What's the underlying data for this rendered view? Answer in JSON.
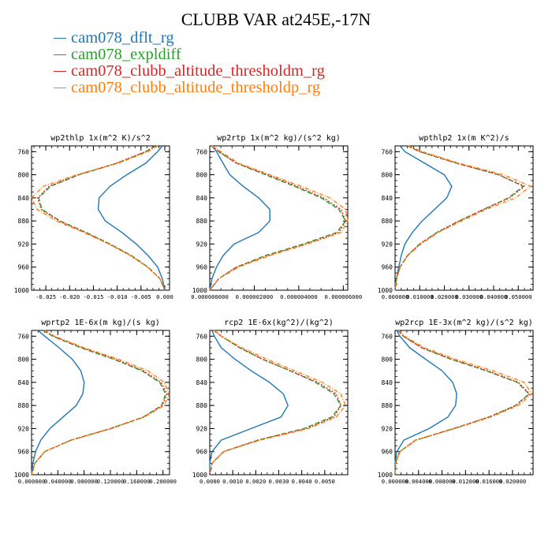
{
  "title": "CLUBB VAR at245E,-17N",
  "legend": [
    {
      "label": "cam078_dflt_rg",
      "color": "#1f77b4"
    },
    {
      "label": "cam078_expldiff",
      "color": "#2ca02c"
    },
    {
      "label": "cam078_clubb_altitude_thresholdm_rg",
      "color": "#d62728"
    },
    {
      "label": "cam078_clubb_altitude_thresholdp_rg",
      "color": "#ff7f0e"
    }
  ],
  "chart_data": [
    {
      "type": "line",
      "title": "wp2thlp  1x(m^2 K)/s^2",
      "xlim": [
        -0.028,
        0.001
      ],
      "ylim": [
        1000,
        750
      ],
      "y_reversed": true,
      "xtick_labels": [
        "-0.025",
        "-0.020",
        "-0.015",
        "-0.010",
        "-0.005",
        "0.000"
      ],
      "xtick_values": [
        -0.025,
        -0.02,
        -0.015,
        -0.01,
        -0.005,
        0.0
      ],
      "ytick_labels": [
        "760",
        "800",
        "840",
        "880",
        "920",
        "960",
        "1000"
      ],
      "ytick_values": [
        760,
        800,
        840,
        880,
        920,
        960,
        1000
      ],
      "y": [
        750,
        760,
        780,
        800,
        820,
        840,
        860,
        880,
        900,
        920,
        940,
        960,
        980,
        1000
      ],
      "series": [
        {
          "name": "cam078_dflt_rg",
          "x": [
            -0.0005,
            -0.0015,
            -0.004,
            -0.008,
            -0.0115,
            -0.0138,
            -0.014,
            -0.0125,
            -0.009,
            -0.006,
            -0.0035,
            -0.0015,
            -0.0005,
            0.0
          ]
        },
        {
          "name": "cam078_expldiff",
          "x": [
            -0.002,
            -0.004,
            -0.01,
            -0.018,
            -0.024,
            -0.0265,
            -0.0258,
            -0.022,
            -0.0165,
            -0.0115,
            -0.007,
            -0.0035,
            -0.001,
            0.0
          ]
        },
        {
          "name": "cam078_clubb_altitude_thresholdm_rg",
          "x": [
            -0.002,
            -0.004,
            -0.0102,
            -0.0182,
            -0.0243,
            -0.0267,
            -0.026,
            -0.0222,
            -0.0167,
            -0.0117,
            -0.0072,
            -0.0036,
            -0.001,
            0.0
          ]
        },
        {
          "name": "cam078_clubb_altitude_thresholdp_rg",
          "x": [
            -0.0015,
            -0.0035,
            -0.0098,
            -0.0185,
            -0.0255,
            -0.028,
            -0.0268,
            -0.0228,
            -0.017,
            -0.0118,
            -0.0072,
            -0.0036,
            -0.001,
            0.0
          ]
        }
      ]
    },
    {
      "type": "line",
      "title": "wp2rtp  1x(m^2 kg)/(s^2 kg)",
      "xlim": [
        0.0,
        6.2e-06
      ],
      "ylim": [
        1000,
        750
      ],
      "y_reversed": true,
      "xtick_labels": [
        "0.000000000",
        "0.000002000",
        "0.000004000",
        "0.000006000"
      ],
      "xtick_values": [
        0.0,
        2e-06,
        4e-06,
        6e-06
      ],
      "ytick_labels": [
        "760",
        "800",
        "840",
        "880",
        "920",
        "960",
        "1000"
      ],
      "ytick_values": [
        760,
        800,
        840,
        880,
        920,
        960,
        1000
      ],
      "y": [
        750,
        760,
        780,
        800,
        820,
        840,
        860,
        880,
        900,
        920,
        940,
        960,
        980,
        1000
      ],
      "series": [
        {
          "name": "cam078_dflt_rg",
          "x": [
            1e-07,
            3e-07,
            6e-07,
            9e-07,
            1.5e-06,
            2.2e-06,
            2.7e-06,
            2.7e-06,
            2.2e-06,
            1.1e-06,
            6e-07,
            3e-07,
            1e-07,
            0.0
          ]
        },
        {
          "name": "cam078_expldiff",
          "x": [
            1e-07,
            4e-07,
            1.2e-06,
            2.5e-06,
            3.8e-06,
            5e-06,
            5.8e-06,
            6.1e-06,
            5.7e-06,
            4.2e-06,
            2.5e-06,
            1.2e-06,
            4e-07,
            0.0
          ]
        },
        {
          "name": "cam078_clubb_altitude_thresholdm_rg",
          "x": [
            1e-07,
            4e-07,
            1.2e-06,
            2.6e-06,
            3.9e-06,
            5.1e-06,
            5.9e-06,
            6.1e-06,
            5.8e-06,
            4.3e-06,
            2.6e-06,
            1.2e-06,
            4e-07,
            0.0
          ]
        },
        {
          "name": "cam078_clubb_altitude_thresholdp_rg",
          "x": [
            1e-07,
            5e-07,
            1.3e-06,
            2.7e-06,
            4.1e-06,
            5.4e-06,
            6.1e-06,
            6.2e-06,
            5.9e-06,
            4.4e-06,
            2.7e-06,
            1.3e-06,
            4e-07,
            0.0
          ]
        }
      ]
    },
    {
      "type": "line",
      "title": "wpthlp2  1x(m K^2)/s",
      "xlim": [
        0.0,
        0.056
      ],
      "ylim": [
        1000,
        750
      ],
      "y_reversed": true,
      "xtick_labels": [
        "0.000000",
        "0.010000",
        "0.020000",
        "0.030000",
        "0.040000",
        "0.050000"
      ],
      "xtick_values": [
        0.0,
        0.01,
        0.02,
        0.03,
        0.04,
        0.05
      ],
      "ytick_labels": [
        "760",
        "800",
        "840",
        "880",
        "920",
        "960",
        "1000"
      ],
      "ytick_values": [
        760,
        800,
        840,
        880,
        920,
        960,
        1000
      ],
      "y": [
        750,
        760,
        780,
        800,
        820,
        840,
        860,
        880,
        900,
        920,
        940,
        960,
        980,
        1000
      ],
      "series": [
        {
          "name": "cam078_dflt_rg",
          "x": [
            0.002,
            0.004,
            0.012,
            0.02,
            0.023,
            0.021,
            0.016,
            0.011,
            0.007,
            0.004,
            0.0025,
            0.0015,
            0.0005,
            0.0
          ]
        },
        {
          "name": "cam078_expldiff",
          "x": [
            0.005,
            0.01,
            0.025,
            0.042,
            0.052,
            0.046,
            0.036,
            0.026,
            0.017,
            0.01,
            0.005,
            0.002,
            0.0005,
            0.0
          ]
        },
        {
          "name": "cam078_clubb_altitude_thresholdm_rg",
          "x": [
            0.005,
            0.01,
            0.025,
            0.042,
            0.0525,
            0.0465,
            0.036,
            0.026,
            0.017,
            0.01,
            0.005,
            0.002,
            0.0005,
            0.0
          ]
        },
        {
          "name": "cam078_clubb_altitude_thresholdp_rg",
          "x": [
            0.0055,
            0.011,
            0.026,
            0.044,
            0.055,
            0.049,
            0.037,
            0.027,
            0.0175,
            0.0105,
            0.0052,
            0.0021,
            0.0005,
            0.0
          ]
        }
      ]
    },
    {
      "type": "line",
      "title": "wprtp2  1E-6x(m kg)/(s kg)",
      "xlim": [
        0.0,
        0.21
      ],
      "ylim": [
        1000,
        750
      ],
      "y_reversed": true,
      "xtick_labels": [
        "0.000000",
        "0.040000",
        "0.080000",
        "0.120000",
        "0.160000",
        "0.200000"
      ],
      "xtick_values": [
        0.0,
        0.04,
        0.08,
        0.12,
        0.16,
        0.2
      ],
      "ytick_labels": [
        "760",
        "800",
        "840",
        "880",
        "920",
        "960",
        "1000"
      ],
      "ytick_values": [
        760,
        800,
        840,
        880,
        920,
        960,
        1000
      ],
      "y": [
        750,
        760,
        780,
        800,
        820,
        840,
        860,
        880,
        900,
        920,
        940,
        960,
        980,
        1000
      ],
      "series": [
        {
          "name": "cam078_dflt_rg",
          "x": [
            0.01,
            0.02,
            0.042,
            0.062,
            0.075,
            0.08,
            0.078,
            0.068,
            0.048,
            0.028,
            0.014,
            0.006,
            0.002,
            0.0
          ]
        },
        {
          "name": "cam078_expldiff",
          "x": [
            0.018,
            0.032,
            0.075,
            0.125,
            0.168,
            0.195,
            0.204,
            0.198,
            0.17,
            0.12,
            0.06,
            0.02,
            0.005,
            0.0
          ]
        },
        {
          "name": "cam078_clubb_altitude_thresholdm_rg",
          "x": [
            0.018,
            0.033,
            0.077,
            0.128,
            0.17,
            0.197,
            0.206,
            0.199,
            0.171,
            0.121,
            0.06,
            0.02,
            0.005,
            0.0
          ]
        },
        {
          "name": "cam078_clubb_altitude_thresholdp_rg",
          "x": [
            0.02,
            0.035,
            0.08,
            0.133,
            0.177,
            0.202,
            0.209,
            0.202,
            0.172,
            0.122,
            0.061,
            0.02,
            0.005,
            0.0
          ]
        }
      ]
    },
    {
      "type": "line",
      "title": "rcp2  1E-6x(kg^2)/(kg^2)",
      "xlim": [
        0.0,
        0.006
      ],
      "ylim": [
        1000,
        750
      ],
      "y_reversed": true,
      "xtick_labels": [
        "0.0000",
        "0.0010",
        "0.0020",
        "0.0030",
        "0.0040",
        "0.0050"
      ],
      "xtick_values": [
        0.0,
        0.001,
        0.002,
        0.003,
        0.004,
        0.005
      ],
      "ytick_labels": [
        "760",
        "800",
        "840",
        "880",
        "920",
        "960",
        "1000"
      ],
      "ytick_values": [
        760,
        800,
        840,
        880,
        920,
        960,
        1000
      ],
      "y": [
        750,
        760,
        780,
        800,
        820,
        840,
        860,
        880,
        900,
        920,
        940,
        960,
        980,
        1000
      ],
      "series": [
        {
          "name": "cam078_dflt_rg",
          "x": [
            0.0001,
            0.0002,
            0.0005,
            0.0011,
            0.0018,
            0.0026,
            0.0032,
            0.0034,
            0.0031,
            0.0018,
            0.0005,
            0.0001,
            0.0,
            0.0
          ]
        },
        {
          "name": "cam078_expldiff",
          "x": [
            0.0002,
            0.0005,
            0.0013,
            0.0023,
            0.0035,
            0.0046,
            0.0054,
            0.0057,
            0.0053,
            0.0041,
            0.0021,
            0.0006,
            0.0001,
            0.0
          ]
        },
        {
          "name": "cam078_clubb_altitude_thresholdm_rg",
          "x": [
            0.0002,
            0.0005,
            0.0013,
            0.0023,
            0.0035,
            0.0047,
            0.0055,
            0.0057,
            0.0054,
            0.0042,
            0.0021,
            0.0006,
            0.0001,
            0.0
          ]
        },
        {
          "name": "cam078_clubb_altitude_thresholdp_rg",
          "x": [
            0.0002,
            0.0005,
            0.0014,
            0.0025,
            0.0037,
            0.0049,
            0.0057,
            0.0059,
            0.0055,
            0.0043,
            0.0022,
            0.0006,
            0.0001,
            0.0
          ]
        }
      ]
    },
    {
      "type": "line",
      "title": "wp2rcp  1E-3x(m^2 kg)/(s^2 kg)",
      "xlim": [
        0.0,
        0.0235
      ],
      "ylim": [
        1000,
        750
      ],
      "y_reversed": true,
      "xtick_labels": [
        "0.000000",
        "0.004000",
        "0.008000",
        "0.012000",
        "0.016000",
        "0.020000"
      ],
      "xtick_values": [
        0.0,
        0.004,
        0.008,
        0.012,
        0.016,
        0.02
      ],
      "ytick_labels": [
        "760",
        "800",
        "840",
        "880",
        "920",
        "960",
        "1000"
      ],
      "ytick_values": [
        760,
        800,
        840,
        880,
        920,
        960,
        1000
      ],
      "y": [
        750,
        760,
        780,
        800,
        820,
        840,
        860,
        880,
        900,
        920,
        940,
        960,
        980,
        1000
      ],
      "series": [
        {
          "name": "cam078_dflt_rg",
          "x": [
            0.0003,
            0.0008,
            0.0025,
            0.0052,
            0.008,
            0.0098,
            0.0105,
            0.0103,
            0.009,
            0.0058,
            0.0015,
            0.0003,
            0.0,
            0.0
          ]
        },
        {
          "name": "cam078_expldiff",
          "x": [
            0.0005,
            0.0014,
            0.0045,
            0.0095,
            0.0155,
            0.0208,
            0.0228,
            0.0205,
            0.016,
            0.01,
            0.0035,
            0.0008,
            0.0001,
            0.0
          ]
        },
        {
          "name": "cam078_clubb_altitude_thresholdm_rg",
          "x": [
            0.0005,
            0.0014,
            0.0046,
            0.0097,
            0.0158,
            0.021,
            0.0229,
            0.0206,
            0.016,
            0.01,
            0.0035,
            0.0008,
            0.0001,
            0.0
          ]
        },
        {
          "name": "cam078_clubb_altitude_thresholdp_rg",
          "x": [
            0.0006,
            0.0016,
            0.005,
            0.0103,
            0.0167,
            0.022,
            0.0233,
            0.021,
            0.0163,
            0.0102,
            0.0036,
            0.0008,
            0.0001,
            0.0
          ]
        }
      ]
    }
  ]
}
